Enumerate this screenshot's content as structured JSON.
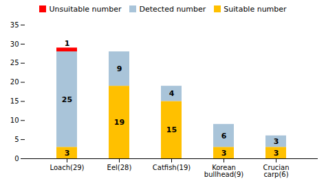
{
  "chart_data": {
    "type": "bar",
    "stacked": true,
    "categories": [
      "Loach(29)",
      "Eel(28)",
      "Catfish(19)",
      "Korean\nbullhead(9)",
      "Crucian\ncarp(6)"
    ],
    "series": [
      {
        "name": "Suitable number",
        "color": "#FFC000",
        "values": [
          3,
          19,
          15,
          3,
          3
        ]
      },
      {
        "name": "Detected number",
        "color": "#A9C4D9",
        "values": [
          25,
          9,
          4,
          6,
          3
        ]
      },
      {
        "name": "Unsuitable number",
        "color": "#FF0000",
        "values": [
          1,
          0,
          0,
          0,
          0
        ]
      }
    ],
    "ylim": [
      0,
      35
    ],
    "yticks": [
      0,
      5,
      10,
      15,
      20,
      25,
      30,
      35
    ],
    "grid": false,
    "legend": "top",
    "data_labels": true
  }
}
